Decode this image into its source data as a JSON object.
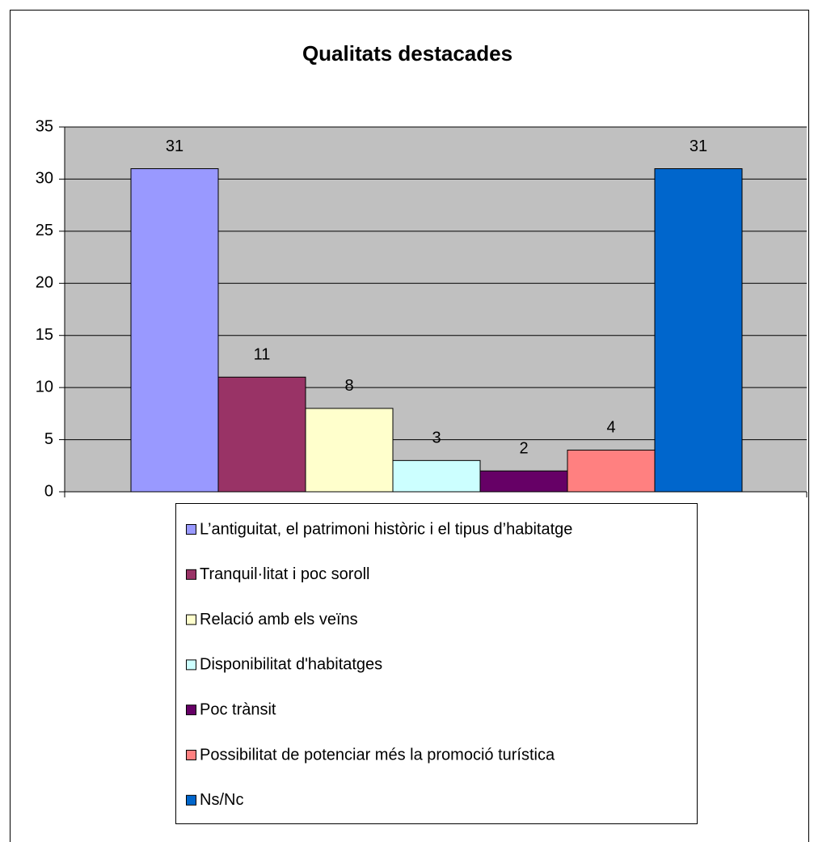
{
  "chart_data": {
    "type": "bar",
    "title": "Qualitats destacades",
    "series": [
      {
        "name": "L’antiguitat, el patrimoni històric i el tipus d’habitatge",
        "color": "#9999ff",
        "values": [
          31
        ]
      },
      {
        "name": "Tranquil·litat i poc soroll",
        "color": "#993366",
        "values": [
          11
        ]
      },
      {
        "name": "Relació amb els veïns",
        "color": "#ffffcc",
        "values": [
          8
        ]
      },
      {
        "name": "Disponibilitat d'habitatges",
        "color": "#ccffff",
        "values": [
          3
        ]
      },
      {
        "name": "Poc trànsit",
        "color": "#660066",
        "values": [
          2
        ]
      },
      {
        "name": "Possibilitat de potenciar més la promoció turística",
        "color": "#ff8080",
        "values": [
          4
        ]
      },
      {
        "name": "Ns/Nc",
        "color": "#0066cc",
        "values": [
          31
        ]
      }
    ],
    "ylim": [
      0,
      35
    ],
    "yticks": [
      0,
      5,
      10,
      15,
      20,
      25,
      30,
      35
    ],
    "grid": true,
    "legend": "bottom"
  }
}
